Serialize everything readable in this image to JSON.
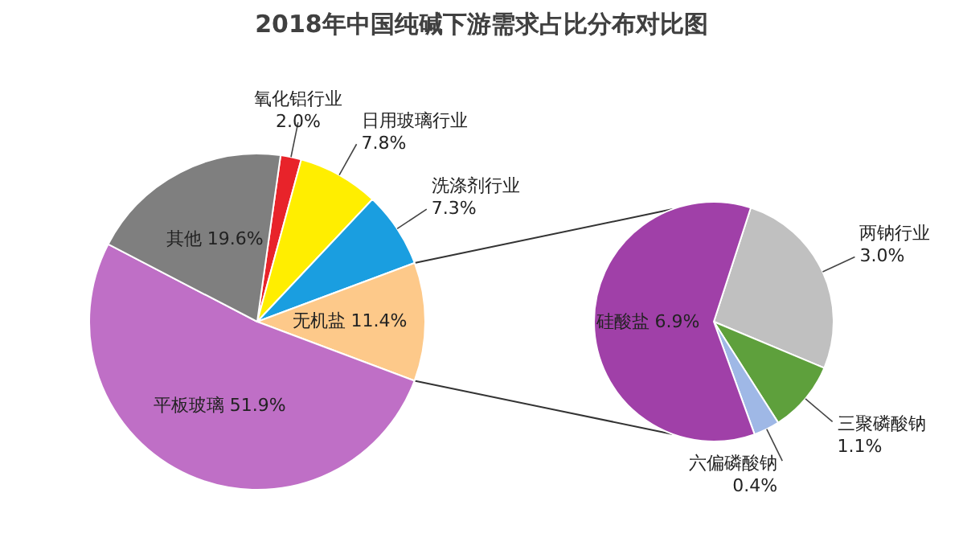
{
  "chart_data": [
    {
      "type": "pie",
      "title": "2018年中国纯碱下游需求占比分布对比图",
      "categories": [
        "氧化铝行业",
        "日用玻璃行业",
        "洗涤剂行业",
        "无机盐",
        "平板玻璃",
        "其他"
      ],
      "values": [
        2.0,
        7.8,
        7.3,
        11.4,
        51.9,
        19.6
      ],
      "value_labels": [
        "2.0%",
        "7.8%",
        "7.3%",
        "11.4%",
        "51.9%",
        "19.6%"
      ],
      "colors": [
        "#e8232a",
        "#ffee00",
        "#1a9ee0",
        "#fdc98a",
        "#bf6fc6",
        "#7f7f7f"
      ],
      "legend": false
    },
    {
      "type": "pie",
      "categories": [
        "两钠行业",
        "三聚磷酸钠",
        "六偏磷酸钠",
        "硅酸盐"
      ],
      "values": [
        3.0,
        1.1,
        0.4,
        6.9
      ],
      "value_labels": [
        "3.0%",
        "1.1%",
        "0.4%",
        "6.9%"
      ],
      "colors": [
        "#c0c0c0",
        "#5ea03c",
        "#9fb8e6",
        "#a040a8"
      ],
      "legend": false
    }
  ]
}
